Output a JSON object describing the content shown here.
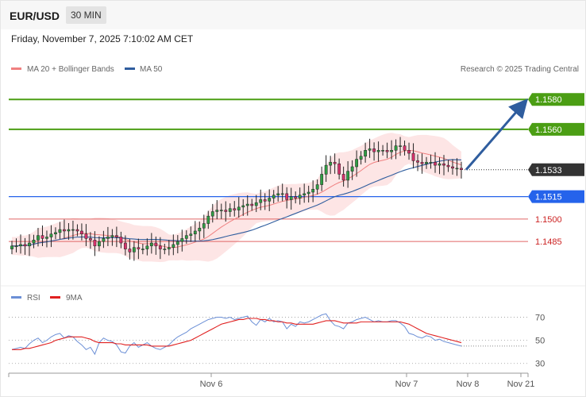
{
  "header": {
    "symbol": "EUR/USD",
    "timeframe": "30 MIN",
    "datetime": "Friday, November 7, 2025 7:10:02 AM CET",
    "credit": "Research © 2025 Trading Central"
  },
  "colors": {
    "bull": "#2f9e44",
    "bear": "#d6336c",
    "ma20": "#f08080",
    "ma50": "#2f5d9e",
    "band": "#fde0e0",
    "resistance": "#4b9e14",
    "support_blue": "#2563eb",
    "support_red": "#e06666",
    "current": "#333333",
    "rsi": "#6b8fd6",
    "rsi_ma": "#e02020",
    "arrow": "#2f5d9e"
  },
  "chart_data": [
    {
      "type": "candlestick",
      "legend": [
        {
          "name": "MA 20 + Bollinger Bands",
          "color": "#f08080"
        },
        {
          "name": "MA 50",
          "color": "#2f5d9e"
        }
      ],
      "ylim": [
        1.1458,
        1.1595
      ],
      "levels": [
        {
          "value": 1.158,
          "label": "1.1580",
          "kind": "resistance"
        },
        {
          "value": 1.156,
          "label": "1.1560",
          "kind": "resistance"
        },
        {
          "value": 1.1533,
          "label": "1.1533",
          "kind": "current"
        },
        {
          "value": 1.1515,
          "label": "1.1515",
          "kind": "support_blue"
        },
        {
          "value": 1.15,
          "label": "1.1500",
          "kind": "support_red"
        },
        {
          "value": 1.1485,
          "label": "1.1485",
          "kind": "support_red"
        }
      ],
      "projection": {
        "from": 1.1533,
        "to": 1.1577
      },
      "close": [
        1.1482,
        1.1482,
        1.1483,
        1.1482,
        1.1484,
        1.1486,
        1.1489,
        1.1487,
        1.1488,
        1.149,
        1.1491,
        1.1493,
        1.1492,
        1.1493,
        1.1493,
        1.1492,
        1.149,
        1.1487,
        1.1486,
        1.1482,
        1.1485,
        1.1487,
        1.1488,
        1.1489,
        1.1488,
        1.1484,
        1.148,
        1.1478,
        1.1481,
        1.148,
        1.148,
        1.1482,
        1.1484,
        1.1482,
        1.148,
        1.148,
        1.1481,
        1.1483,
        1.1485,
        1.1487,
        1.1489,
        1.149,
        1.1492,
        1.1494,
        1.1497,
        1.1502,
        1.1505,
        1.1506,
        1.1506,
        1.1505,
        1.1507,
        1.1506,
        1.1508,
        1.1509,
        1.151,
        1.1509,
        1.1511,
        1.1513,
        1.1512,
        1.1514,
        1.1516,
        1.1517,
        1.1517,
        1.1513,
        1.1515,
        1.1514,
        1.1516,
        1.1517,
        1.1518,
        1.152,
        1.1523,
        1.153,
        1.1536,
        1.1538,
        1.1537,
        1.153,
        1.1526,
        1.1532,
        1.1535,
        1.154,
        1.1542,
        1.1546,
        1.1547,
        1.1545,
        1.1546,
        1.1546,
        1.1545,
        1.1546,
        1.1549,
        1.1549,
        1.1546,
        1.1544,
        1.1539,
        1.1538,
        1.1537,
        1.1538,
        1.1538,
        1.1536,
        1.1537,
        1.1536,
        1.1535,
        1.1534,
        1.1534,
        1.1533
      ],
      "rsi_panel": {
        "legend": [
          {
            "name": "RSI",
            "color": "#6b8fd6"
          },
          {
            "name": "9MA",
            "color": "#e02020"
          }
        ],
        "ylim": [
          25,
          80
        ],
        "ticks": [
          {
            "value": 70,
            "label": "70"
          },
          {
            "value": 50,
            "label": "50"
          },
          {
            "value": 30,
            "label": "30"
          }
        ],
        "rsi": [
          42,
          43,
          44,
          43,
          47,
          50,
          52,
          48,
          50,
          53,
          55,
          56,
          52,
          54,
          53,
          49,
          46,
          42,
          44,
          38,
          48,
          52,
          50,
          49,
          46,
          40,
          39,
          45,
          48,
          44,
          46,
          48,
          45,
          43,
          42,
          44,
          46,
          50,
          53,
          55,
          57,
          60,
          62,
          64,
          66,
          68,
          69,
          70,
          70,
          69,
          70,
          68,
          69,
          70,
          71,
          66,
          63,
          68,
          66,
          69,
          66,
          67,
          66,
          60,
          64,
          62,
          66,
          65,
          66,
          68,
          70,
          72,
          73,
          67,
          63,
          62,
          60,
          65,
          66,
          68,
          69,
          70,
          68,
          66,
          67,
          66,
          66,
          67,
          67,
          65,
          62,
          56,
          55,
          53,
          52,
          54,
          53,
          50,
          51,
          49,
          48,
          47,
          46,
          45
        ],
        "ma9": [
          42,
          42,
          42,
          43,
          43,
          44,
          45,
          46,
          47,
          48,
          50,
          51,
          52,
          53,
          53,
          53,
          53,
          52,
          51,
          49,
          48,
          48,
          48,
          48,
          47,
          47,
          46,
          46,
          46,
          46,
          46,
          46,
          45,
          45,
          45,
          45,
          45,
          46,
          47,
          48,
          49,
          50,
          52,
          54,
          56,
          58,
          60,
          62,
          64,
          65,
          66,
          67,
          68,
          68,
          69,
          69,
          69,
          68,
          68,
          67,
          67,
          66,
          66,
          65,
          65,
          64,
          64,
          64,
          64,
          64,
          65,
          66,
          67,
          67,
          67,
          66,
          65,
          65,
          65,
          65,
          66,
          66,
          66,
          66,
          66,
          66,
          66,
          66,
          66,
          66,
          65,
          64,
          62,
          60,
          58,
          56,
          55,
          54,
          53,
          52,
          51,
          50,
          49,
          48
        ]
      },
      "x_ticks": [
        {
          "label": "Nov 6"
        },
        {
          "label": "Nov 7"
        },
        {
          "label": "Nov 8"
        },
        {
          "label": "Nov 21"
        }
      ]
    }
  ]
}
